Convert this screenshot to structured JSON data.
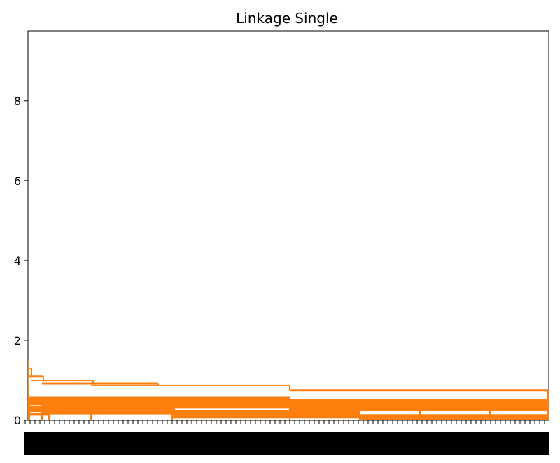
{
  "chart_data": {
    "type": "dendrogram",
    "title": "Linkage Single",
    "xlabel": "",
    "ylabel": "",
    "ylim": [
      0,
      9.75
    ],
    "y_ticks": [
      0,
      2,
      4,
      6,
      8
    ],
    "y_tick_labels": [
      "0",
      "2",
      "4",
      "6",
      "8"
    ],
    "grid": false,
    "legend": "none",
    "link_color": "#ff7f0e",
    "x_leaf_labels": "dense overlapping leaf labels (illegible)",
    "merge_heights_approx": [
      1.5,
      1.3,
      1.1,
      1.0,
      0.92,
      0.88,
      0.8,
      0.75,
      0.55,
      0.5,
      0.45,
      0.42,
      0.38,
      0.35,
      0.32,
      0.3,
      0.28,
      0.25,
      0.2,
      0.15,
      0.12,
      0.1,
      0.08,
      0.06,
      0.05,
      0.03
    ]
  }
}
